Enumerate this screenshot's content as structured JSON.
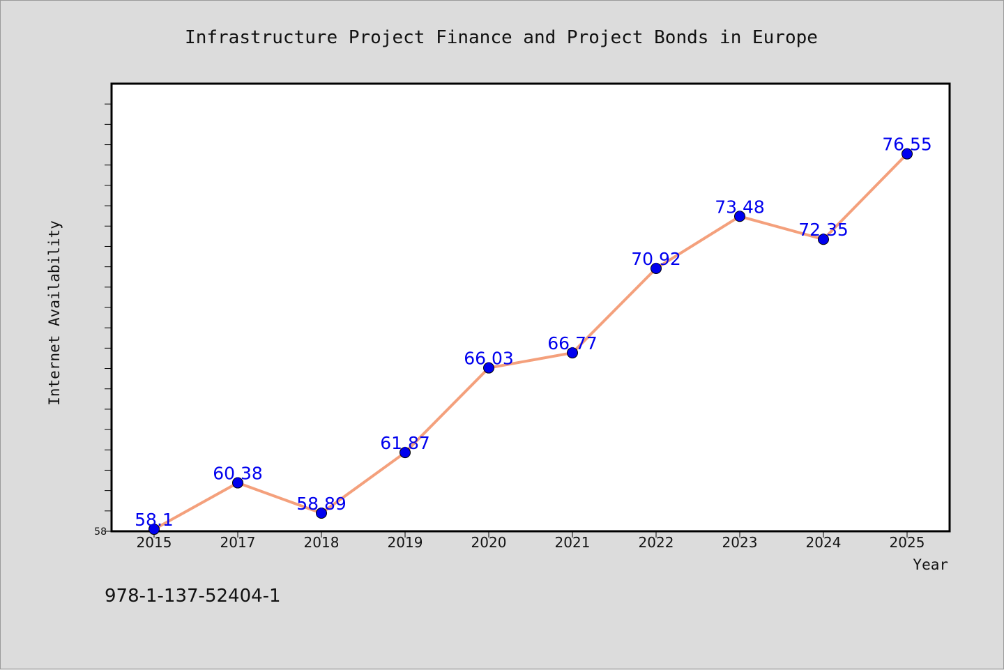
{
  "chart_data": {
    "type": "line",
    "title": "Infrastructure Project Finance and Project Bonds in Europe",
    "xlabel": "Year",
    "ylabel": "Internet Availability",
    "categories": [
      "2015",
      "2017",
      "2018",
      "2019",
      "2020",
      "2021",
      "2022",
      "2023",
      "2024",
      "2025"
    ],
    "series": [
      {
        "values": [
          58.1,
          60.38,
          58.89,
          61.87,
          66.03,
          66.77,
          70.92,
          73.48,
          72.35,
          76.55
        ],
        "labels": [
          "58.1",
          "60.38",
          "58.89",
          "61.87",
          "66.03",
          "66.77",
          "70.92",
          "73.48",
          "72.35",
          "76.55"
        ]
      }
    ],
    "ylim": [
      58,
      80
    ],
    "y_tick_labels": [
      "58"
    ],
    "grid": false,
    "line_color": "#f4a07c",
    "marker_color": "#0000ee",
    "label_color": "#0000ee"
  },
  "footer": {
    "isbn": "978-1-137-52404-1"
  }
}
